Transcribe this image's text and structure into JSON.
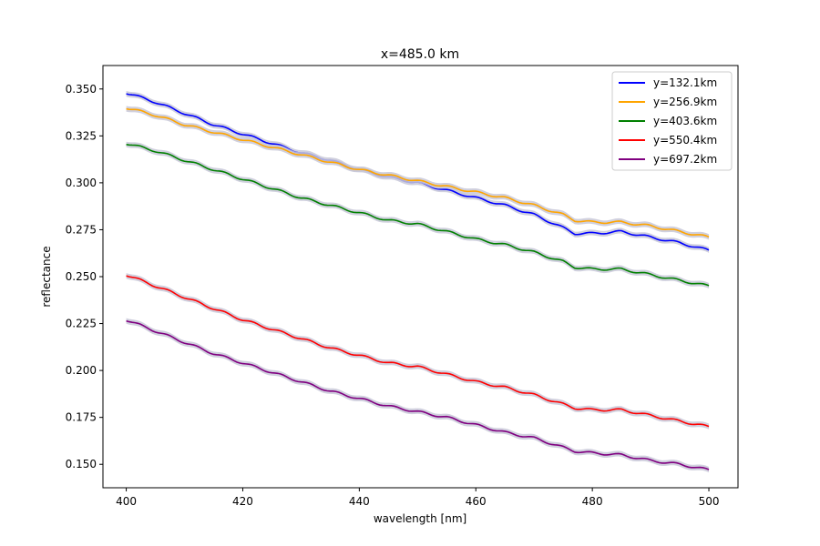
{
  "chart_data": {
    "type": "line",
    "title": "x=485.0 km",
    "xlabel": "wavelength [nm]",
    "ylabel": "reflectance",
    "xlim": [
      396,
      505
    ],
    "ylim": [
      0.1375,
      0.3625
    ],
    "xticks": [
      400,
      420,
      440,
      460,
      480,
      500
    ],
    "xtick_labels": [
      "400",
      "420",
      "440",
      "460",
      "480",
      "500"
    ],
    "yticks": [
      0.15,
      0.175,
      0.2,
      0.225,
      0.25,
      0.275,
      0.3,
      0.325,
      0.35
    ],
    "ytick_labels": [
      "0.150",
      "0.175",
      "0.200",
      "0.225",
      "0.250",
      "0.275",
      "0.300",
      "0.325",
      "0.350"
    ],
    "grid": false,
    "legend_position": "top-right",
    "uncertainty_band": true,
    "band_color": "#c8c8d8",
    "series": [
      {
        "name": "y=132.1km",
        "color": "#0000ff",
        "x": [
          400,
          405,
          410,
          415,
          420,
          425,
          430,
          435,
          440,
          445,
          450,
          455,
          460,
          465,
          470,
          475,
          477,
          480,
          485,
          490,
          495,
          500
        ],
        "y": [
          0.348,
          0.343,
          0.337,
          0.331,
          0.326,
          0.321,
          0.316,
          0.312,
          0.307,
          0.303,
          0.3,
          0.296,
          0.292,
          0.288,
          0.283,
          0.276,
          0.273,
          0.273,
          0.274,
          0.271,
          0.268,
          0.264
        ]
      },
      {
        "name": "y=256.9km",
        "color": "#ffa500",
        "x": [
          400,
          405,
          410,
          415,
          420,
          425,
          430,
          435,
          440,
          445,
          450,
          455,
          460,
          465,
          470,
          475,
          477,
          480,
          485,
          490,
          495,
          500
        ],
        "y": [
          0.34,
          0.336,
          0.331,
          0.327,
          0.323,
          0.319,
          0.315,
          0.311,
          0.307,
          0.304,
          0.301,
          0.298,
          0.295,
          0.292,
          0.288,
          0.283,
          0.28,
          0.279,
          0.279,
          0.277,
          0.274,
          0.271
        ]
      },
      {
        "name": "y=403.6km",
        "color": "#008000",
        "x": [
          400,
          405,
          410,
          415,
          420,
          425,
          430,
          435,
          440,
          445,
          450,
          455,
          460,
          465,
          470,
          475,
          477,
          480,
          485,
          490,
          495,
          500
        ],
        "y": [
          0.321,
          0.317,
          0.312,
          0.307,
          0.302,
          0.297,
          0.292,
          0.288,
          0.284,
          0.28,
          0.278,
          0.274,
          0.27,
          0.267,
          0.263,
          0.258,
          0.255,
          0.254,
          0.254,
          0.251,
          0.248,
          0.245
        ]
      },
      {
        "name": "y=550.4km",
        "color": "#ff0000",
        "x": [
          400,
          405,
          410,
          415,
          420,
          425,
          430,
          435,
          440,
          445,
          450,
          455,
          460,
          465,
          470,
          475,
          477,
          480,
          485,
          490,
          495,
          500
        ],
        "y": [
          0.251,
          0.245,
          0.239,
          0.233,
          0.227,
          0.222,
          0.217,
          0.212,
          0.208,
          0.204,
          0.202,
          0.198,
          0.194,
          0.191,
          0.187,
          0.182,
          0.18,
          0.179,
          0.179,
          0.176,
          0.173,
          0.17
        ]
      },
      {
        "name": "y=697.2km",
        "color": "#800080",
        "x": [
          400,
          405,
          410,
          415,
          420,
          425,
          430,
          435,
          440,
          445,
          450,
          455,
          460,
          465,
          470,
          475,
          477,
          480,
          485,
          490,
          495,
          500
        ],
        "y": [
          0.227,
          0.221,
          0.215,
          0.209,
          0.204,
          0.199,
          0.194,
          0.189,
          0.185,
          0.181,
          0.178,
          0.175,
          0.171,
          0.167,
          0.164,
          0.159,
          0.157,
          0.156,
          0.155,
          0.152,
          0.15,
          0.147
        ]
      }
    ]
  }
}
